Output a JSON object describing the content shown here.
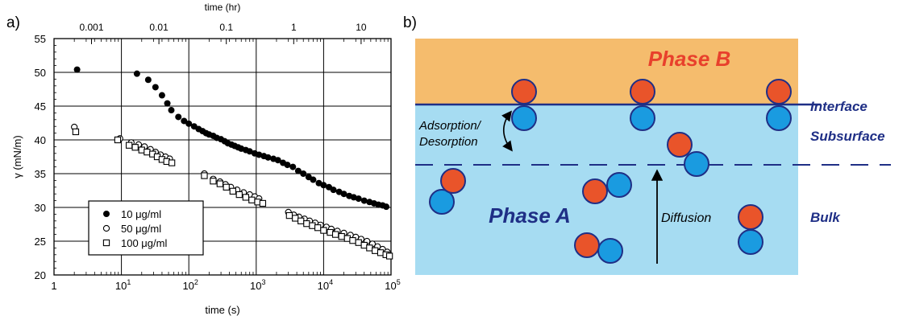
{
  "panels": {
    "a_label": "a)",
    "b_label": "b)"
  },
  "chart_data": {
    "type": "scatter",
    "title": "",
    "xlabel": "time (s)",
    "ylabel": "γ (mN/m)",
    "x_scale": "log",
    "xlim": [
      1,
      100000
    ],
    "ylim": [
      20,
      55
    ],
    "x_ticks": [
      {
        "value": 1,
        "label": "1"
      },
      {
        "value": 10,
        "base": "10",
        "exp": "1"
      },
      {
        "value": 100,
        "base": "10",
        "exp": "2"
      },
      {
        "value": 1000,
        "base": "10",
        "exp": "3"
      },
      {
        "value": 10000,
        "base": "10",
        "exp": "4"
      },
      {
        "value": 100000,
        "base": "10",
        "exp": "5"
      }
    ],
    "y_ticks": [
      20,
      25,
      30,
      35,
      40,
      45,
      50,
      55
    ],
    "top_axis": {
      "label": "time (hr)",
      "ticks": [
        {
          "hours": 0.001,
          "label": "0.001"
        },
        {
          "hours": 0.01,
          "label": "0.01"
        },
        {
          "hours": 0.1,
          "label": "0.1"
        },
        {
          "hours": 1,
          "label": "1"
        },
        {
          "hours": 10,
          "label": "10"
        }
      ]
    },
    "grid": true,
    "legend_position": "bottom-left",
    "series": [
      {
        "name": "10 μg/ml",
        "marker": "filled-circle",
        "x": [
          2.2,
          17,
          25,
          32,
          40,
          48,
          55,
          70,
          85,
          100,
          120,
          140,
          160,
          180,
          200,
          230,
          260,
          300,
          340,
          380,
          430,
          480,
          540,
          600,
          700,
          800,
          950,
          1100,
          1300,
          1500,
          1800,
          2100,
          2500,
          2900,
          3500,
          4200,
          5000,
          6000,
          7000,
          8500,
          10000,
          12000,
          14000,
          17000,
          20000,
          24000,
          28000,
          33000,
          40000,
          48000,
          56000,
          65000,
          75000,
          85000
        ],
        "y": [
          50.4,
          49.8,
          48.9,
          47.8,
          46.6,
          45.4,
          44.4,
          43.4,
          42.8,
          42.4,
          42.0,
          41.6,
          41.3,
          41.0,
          40.8,
          40.6,
          40.3,
          40.1,
          39.8,
          39.5,
          39.3,
          39.1,
          38.9,
          38.7,
          38.5,
          38.3,
          38.0,
          37.8,
          37.6,
          37.4,
          37.2,
          37.0,
          36.6,
          36.3,
          36.0,
          35.4,
          35.0,
          34.5,
          34.1,
          33.6,
          33.3,
          33.0,
          32.6,
          32.3,
          32.0,
          31.7,
          31.5,
          31.3,
          31.0,
          30.8,
          30.6,
          30.4,
          30.3,
          30.1
        ]
      },
      {
        "name": "50 μg/ml",
        "marker": "open-circle",
        "x": [
          2.0,
          9.5,
          14,
          18,
          22,
          27,
          32,
          38,
          45,
          52,
          170,
          230,
          290,
          350,
          420,
          520,
          650,
          800,
          950,
          1100,
          3000,
          3600,
          4300,
          5200,
          6200,
          7500,
          9000,
          11000,
          13000,
          16000,
          20000,
          25000,
          30000,
          36000,
          44000,
          53000,
          63000,
          75000,
          88000
        ],
        "y": [
          41.9,
          40.2,
          39.6,
          39.3,
          39.0,
          38.6,
          38.2,
          37.8,
          37.5,
          37.2,
          35.0,
          34.2,
          33.8,
          33.4,
          33.0,
          32.6,
          32.2,
          31.9,
          31.6,
          31.3,
          29.3,
          28.9,
          28.6,
          28.3,
          28.0,
          27.7,
          27.4,
          27.1,
          26.8,
          26.5,
          26.2,
          25.9,
          25.6,
          25.3,
          25.0,
          24.6,
          24.2,
          23.8,
          23.4
        ]
      },
      {
        "name": "100 μg/ml",
        "marker": "open-square",
        "x": [
          2.1,
          8.8,
          13,
          16,
          20,
          24,
          29,
          34,
          40,
          47,
          56,
          170,
          230,
          290,
          360,
          450,
          560,
          700,
          860,
          1050,
          1250,
          3100,
          3800,
          4600,
          5600,
          6800,
          8200,
          10000,
          12500,
          15000,
          18500,
          22500,
          27000,
          33000,
          40000,
          48000,
          58000,
          70000,
          84000,
          95000
        ],
        "y": [
          41.2,
          40.0,
          39.2,
          38.9,
          38.5,
          38.2,
          37.9,
          37.5,
          37.1,
          36.8,
          36.6,
          34.7,
          33.9,
          33.5,
          33.0,
          32.4,
          31.9,
          31.5,
          31.1,
          30.8,
          30.6,
          28.8,
          28.4,
          28.0,
          27.6,
          27.3,
          27.0,
          26.6,
          26.3,
          26.0,
          25.7,
          25.4,
          25.1,
          24.8,
          24.4,
          24.0,
          23.6,
          23.3,
          23.0,
          22.8
        ]
      }
    ]
  },
  "diagram": {
    "phase_b_label": "Phase B",
    "phase_a_label": "Phase A",
    "interface_label": "Interface",
    "subsurface_label": "Subsurface",
    "bulk_label": "Bulk",
    "adsorption_line1": "Adsorption/",
    "adsorption_line2": "Desorption",
    "diffusion_label": "Diffusion",
    "colors": {
      "phase_b": "#F5BC6D",
      "phase_a": "#A6DCF2",
      "interface_line": "#1F2F86",
      "subsurface_dash": "#1F2F86",
      "phase_b_text": "#E8402C",
      "phase_a_text": "#1F2F86",
      "hydrophobic_head": "#E9542A",
      "hydrophilic_head": "#1A9BE0",
      "outline": "#1F2F86"
    }
  }
}
